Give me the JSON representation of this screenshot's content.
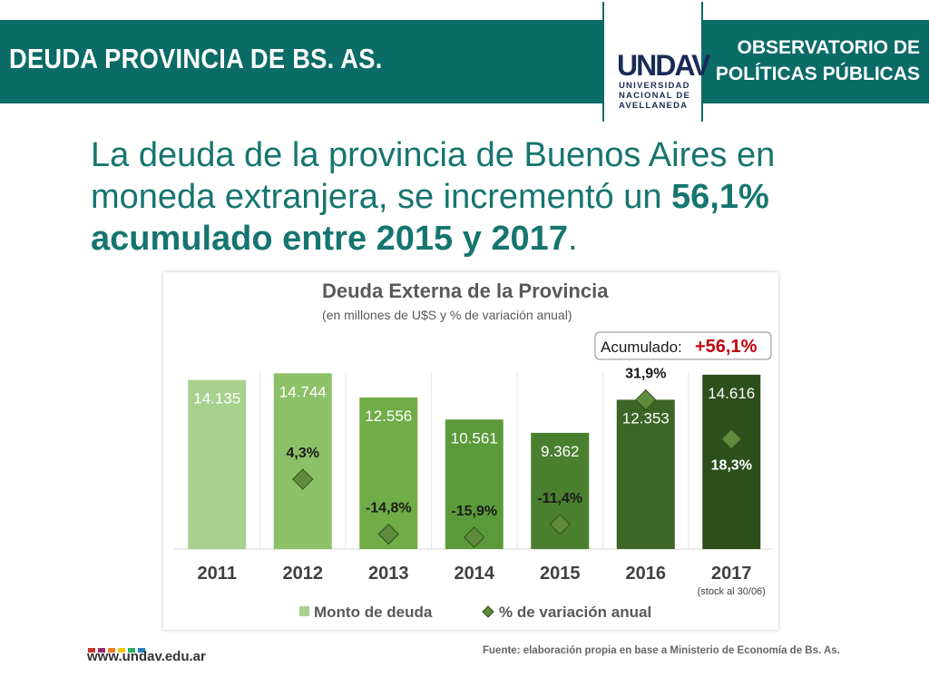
{
  "header": {
    "title": "DEUDA PROVINCIA DE BS. AS.",
    "observatorio_line1": "OBSERVATORIO DE",
    "observatorio_line2": "POLÍTICAS PÚBLICAS"
  },
  "logo": {
    "mark": "UNDAV",
    "line1": "UNIVERSIDAD",
    "line2": "NACIONAL DE",
    "line3": "AVELLANEDA"
  },
  "headline": {
    "part1": "La deuda de la provincia de Buenos Aires en moneda extranjera, se incrementó un ",
    "bold": "56,1% acumulado entre 2015 y 2017",
    "end": "."
  },
  "chart_data": {
    "type": "bar",
    "title": "Deuda Externa de la Provincia",
    "subtitle": "(en millones de U$S y % de variación anual)",
    "categories": [
      "2011",
      "2012",
      "2013",
      "2014",
      "2015",
      "2016",
      "2017"
    ],
    "category_note": "(stock al 30/06)",
    "series": [
      {
        "name": "Monto de deuda",
        "values": [
          14135,
          14744,
          12556,
          10561,
          9362,
          12353,
          14616
        ],
        "labels": [
          "14.135",
          "14.744",
          "12.556",
          "10.561",
          "9.362",
          "12.353",
          "14.616"
        ],
        "colors": [
          "#a8d08d",
          "#8cc168",
          "#70ad47",
          "#5b9a3a",
          "#4a7f30",
          "#3b6626",
          "#2c4f1c"
        ]
      },
      {
        "name": "% de variación anual",
        "values": [
          null,
          4.3,
          -14.8,
          -15.9,
          -11.4,
          31.9,
          18.3
        ],
        "labels": [
          "",
          "4,3%",
          "-14,8%",
          "-15,9%",
          "-11,4%",
          "31,9%",
          "18,3%"
        ],
        "color": "#5e8c3a"
      }
    ],
    "ylim": [
      0,
      16000
    ],
    "ylim_pct": [
      -20,
      40
    ],
    "annotation_prefix": "Acumulado: ",
    "annotation_value": "+56,1%",
    "annotation_color": "#c0000f",
    "legend_position": "bottom"
  },
  "footer": {
    "url": "www.undav.edu.ar",
    "source": "Fuente: elaboración propia en base a Ministerio de Economía de Bs. As.",
    "square_colors": [
      "#c0392b",
      "#8e2a6e",
      "#e67e22",
      "#f1c40f",
      "#27ae60",
      "#2980b9"
    ]
  }
}
